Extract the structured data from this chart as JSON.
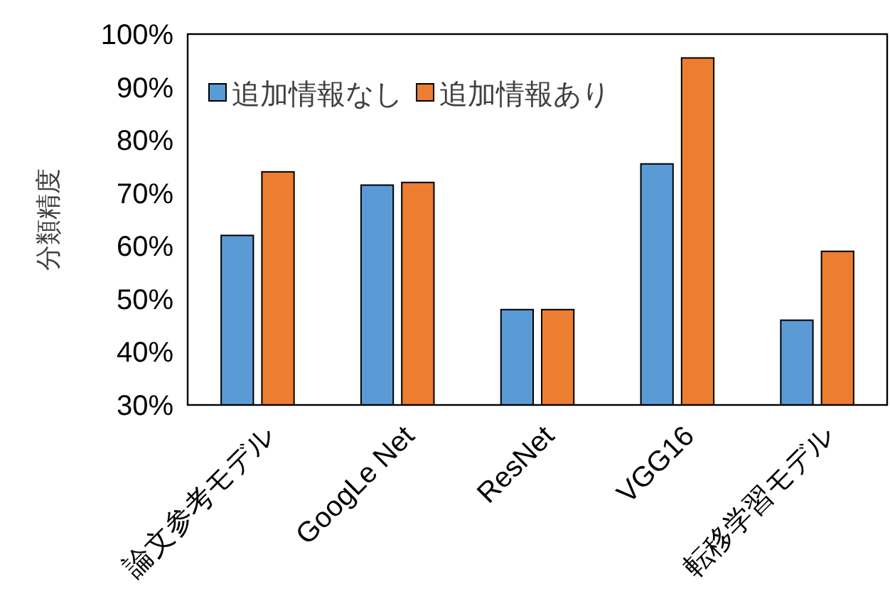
{
  "chart_data": {
    "type": "bar",
    "ylabel": "分類精度",
    "categories": [
      "論文参考モデル",
      "GoogLe Net",
      "ResNet",
      "VGG16",
      "転移学習モデル"
    ],
    "series": [
      {
        "name": "追加情報なし",
        "color": "#5b9bd5",
        "values": [
          62,
          71.5,
          48,
          75.5,
          46
        ]
      },
      {
        "name": "追加情報あり",
        "color": "#ed7d31",
        "values": [
          74,
          72,
          48,
          95.5,
          59
        ]
      }
    ],
    "ylim": [
      30,
      100
    ],
    "yticks": [
      {
        "value": 30,
        "label": "30%"
      },
      {
        "value": 40,
        "label": "40%"
      },
      {
        "value": 50,
        "label": "50%"
      },
      {
        "value": 60,
        "label": "60%"
      },
      {
        "value": 70,
        "label": "70%"
      },
      {
        "value": 80,
        "label": "80%"
      },
      {
        "value": 90,
        "label": "90%"
      },
      {
        "value": 100,
        "label": "100%"
      }
    ],
    "grid": false,
    "legend": "top left"
  }
}
